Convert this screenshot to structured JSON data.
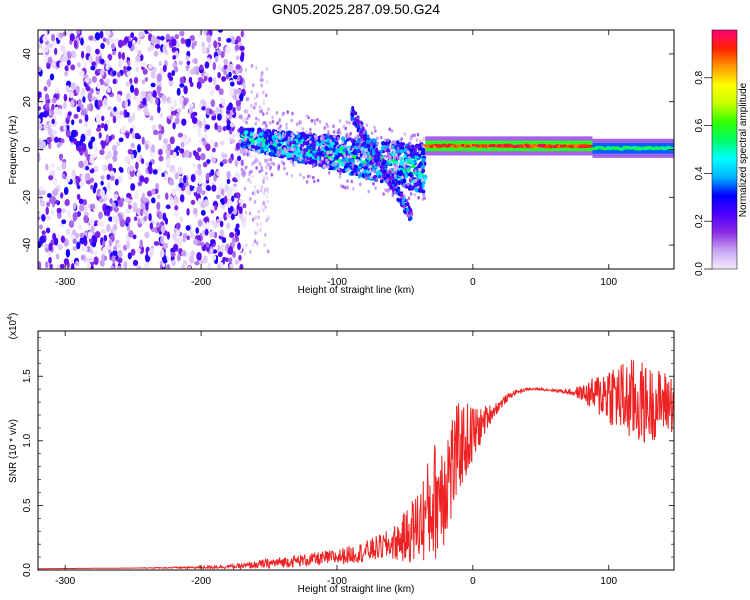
{
  "figure_title": "GN05.2025.287.09.50.G24",
  "chart_data": [
    {
      "type": "heatmap",
      "description_of_content": "spectrogram of frequency vs height",
      "xlabel": "Height of straight line (km)",
      "ylabel": "Frequency (Hz)",
      "xlim": [
        -320,
        148
      ],
      "ylim": [
        -50,
        50
      ],
      "xticks": [
        -300,
        -200,
        -100,
        0,
        100
      ],
      "yticks": [
        -40,
        -20,
        0,
        20,
        40
      ],
      "colorbar": {
        "label": "Normalized spectral amplitude",
        "range": [
          0,
          1
        ],
        "ticks": [
          0.0,
          0.2,
          0.4,
          0.6,
          0.8
        ],
        "colors": [
          "#f4ecfb",
          "#c9a6f4",
          "#8a2be2",
          "#4b00ff",
          "#0000ff",
          "#00b4ff",
          "#00ffff",
          "#00ff66",
          "#33ff00",
          "#c8ff00",
          "#ffff00",
          "#ff9900",
          "#ff2200",
          "#ff007a"
        ]
      },
      "regions": [
        {
          "name": "noise",
          "x": [
            -320,
            -168
          ],
          "freq_range": [
            -50,
            50
          ],
          "amplitude": [
            0.0,
            0.3
          ]
        },
        {
          "name": "sparse-noise",
          "x": [
            -168,
            -150
          ],
          "freq_range": [
            -45,
            35
          ],
          "amplitude": [
            0.0,
            0.1
          ]
        },
        {
          "name": "signal-noisy",
          "x": [
            -170,
            -35
          ],
          "freq_center_at_start": 5,
          "freq_center_at_end": -8,
          "amplitude": [
            0.2,
            0.6
          ]
        },
        {
          "name": "signal-spur",
          "x": [
            -90,
            -45
          ],
          "freq_range": [
            -28,
            16
          ],
          "amplitude": [
            0.1,
            0.4
          ]
        },
        {
          "name": "signal-clean",
          "x": [
            -35,
            88
          ],
          "freq_center": 1.5,
          "amplitude": [
            0.85,
            1.0
          ]
        },
        {
          "name": "signal-tail",
          "x": [
            88,
            148
          ],
          "freq_center": 0.5,
          "amplitude": [
            0.5,
            0.6
          ]
        }
      ]
    },
    {
      "type": "line",
      "xlabel": "Height of straight line (km)",
      "ylabel": "SNR (10 * v/v)",
      "y_multiplier": "(x10",
      "y_multiplier_exp": "4",
      "y_multiplier_close": ")",
      "xlim": [
        -320,
        148
      ],
      "ylim": [
        0,
        1.85
      ],
      "xticks": [
        -300,
        -200,
        -100,
        0,
        100
      ],
      "yticks": [
        0.0,
        0.5,
        1.0,
        1.5
      ],
      "ytick_labels": [
        "0.0",
        "0.5",
        "1.0",
        "1.5"
      ],
      "line_color": "#ee2222",
      "series": [
        {
          "name": "SNR",
          "x": [
            -320,
            -250,
            -200,
            -170,
            -150,
            -120,
            -100,
            -80,
            -60,
            -50,
            -40,
            -30,
            -25,
            -20,
            -15,
            -10,
            -5,
            0,
            5,
            10,
            15,
            20,
            25,
            30,
            40,
            50,
            60,
            70,
            80,
            90,
            100,
            110,
            120,
            130,
            140,
            148
          ],
          "y": [
            0.01,
            0.015,
            0.02,
            0.03,
            0.05,
            0.08,
            0.1,
            0.14,
            0.2,
            0.25,
            0.35,
            0.5,
            0.6,
            0.7,
            0.8,
            0.95,
            1.0,
            1.05,
            1.1,
            1.18,
            1.23,
            1.28,
            1.33,
            1.37,
            1.4,
            1.4,
            1.39,
            1.38,
            1.37,
            1.35,
            1.38,
            1.32,
            1.3,
            1.28,
            1.3,
            1.3
          ],
          "noise_amplitude": [
            0.0,
            0.0,
            0.01,
            0.02,
            0.04,
            0.05,
            0.06,
            0.08,
            0.12,
            0.2,
            0.3,
            0.45,
            0.5,
            0.5,
            0.45,
            0.35,
            0.3,
            0.25,
            0.15,
            0.1,
            0.06,
            0.04,
            0.03,
            0.02,
            0.01,
            0.01,
            0.01,
            0.02,
            0.06,
            0.15,
            0.25,
            0.3,
            0.35,
            0.3,
            0.25,
            0.25
          ]
        }
      ]
    }
  ]
}
